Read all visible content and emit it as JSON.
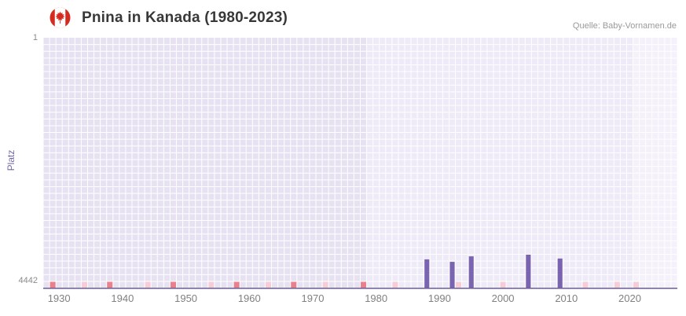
{
  "header": {
    "title": "Pnina in Kanada (1980-2023)",
    "source": "Quelle: Baby-Vornamen.de",
    "flag_icon": "canada-flag-icon"
  },
  "chart_data": {
    "type": "bar",
    "title": "Pnina in Kanada (1980-2023)",
    "xlabel": "",
    "ylabel": "Platz",
    "y_axis": {
      "min": 1,
      "max": 4442,
      "inverted": true,
      "top_label": "1",
      "bottom_label": "4442"
    },
    "x_axis": {
      "start_year": 1928,
      "end_year": 2027,
      "tick_years": [
        1930,
        1940,
        1950,
        1960,
        1970,
        1980,
        1990,
        2000,
        2010,
        2020
      ]
    },
    "bands": [
      {
        "from": 1928,
        "to": 1979,
        "color": "#e7e2f2"
      },
      {
        "from": 1979,
        "to": 2021,
        "color": "#eeeaf7"
      },
      {
        "from": 2021,
        "to": 2028,
        "color": "#f4f1fb"
      }
    ],
    "series": [
      {
        "name": "Platz",
        "color": "#7a63b0",
        "points": [
          {
            "year": 1988,
            "rank": 4040
          },
          {
            "year": 1992,
            "rank": 4085
          },
          {
            "year": 1995,
            "rank": 3985
          },
          {
            "year": 2004,
            "rank": 3955
          },
          {
            "year": 2009,
            "rank": 4025
          }
        ]
      }
    ],
    "bottom_markers": {
      "strong_color": "#e8808e",
      "light_color": "#f6ccd7",
      "strong_years": [
        1929,
        1938,
        1948,
        1958,
        1967,
        1978
      ],
      "light_years": [
        1934,
        1944,
        1954,
        1963,
        1972,
        1983,
        1993,
        2000,
        2013,
        2018,
        2021
      ]
    },
    "grid": {
      "color": "#ffffff",
      "rows": 36
    },
    "axis_line_color": "#6a5d90",
    "tick_color": "#808080"
  }
}
